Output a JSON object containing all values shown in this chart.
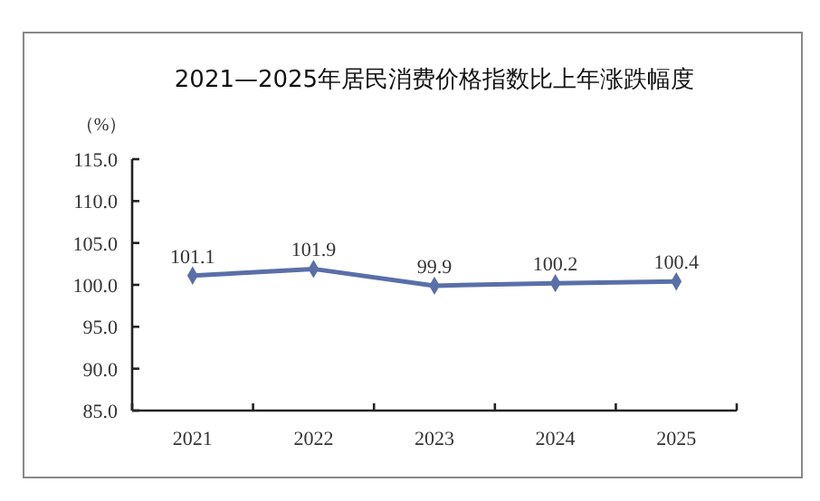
{
  "chart_data": {
    "type": "line",
    "title": "2021—2025年居民消费价格指数比上年涨跌幅度",
    "ylabel": "（%）",
    "categories": [
      "2021",
      "2022",
      "2023",
      "2024",
      "2025"
    ],
    "series": [
      {
        "color": "#5a6fa8",
        "values": [
          101.1,
          101.9,
          99.9,
          100.2,
          100.4
        ]
      }
    ],
    "ylim": [
      85,
      115
    ],
    "yticks": [
      {
        "value": 85,
        "label": "85.0"
      },
      {
        "value": 90,
        "label": "90.0"
      },
      {
        "value": 95,
        "label": "95.0"
      },
      {
        "value": 100,
        "label": "100.0"
      },
      {
        "value": 105,
        "label": "105.0"
      },
      {
        "value": 110,
        "label": "110.0"
      },
      {
        "value": 115,
        "label": "115.0"
      }
    ],
    "data_labels": true,
    "marker": "diamond",
    "line_style": "solid"
  }
}
